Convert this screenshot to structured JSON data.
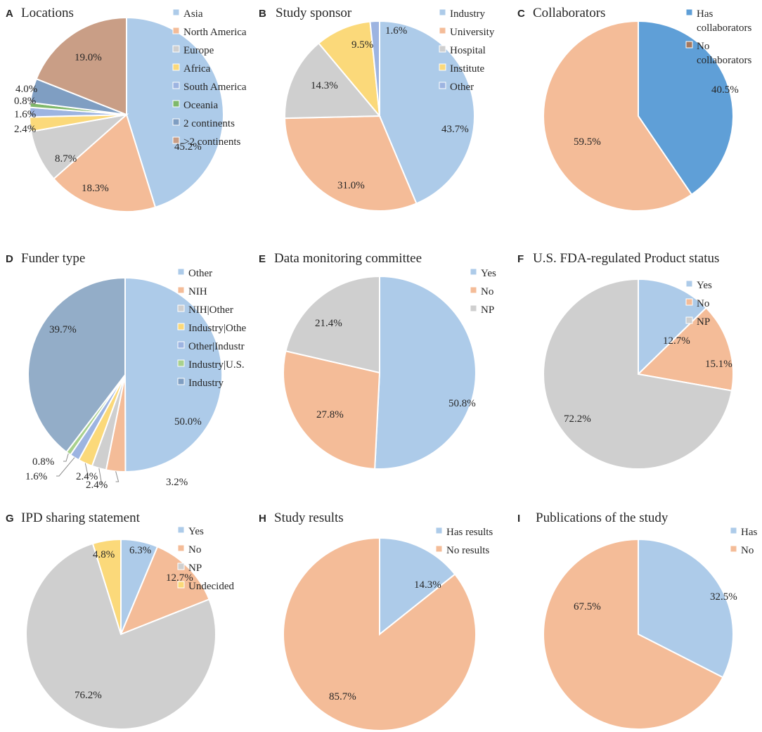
{
  "chart_data": [
    {
      "panel": "A",
      "type": "pie",
      "title": "Locations",
      "categories": [
        "Asia",
        "North America",
        "Europe",
        "Africa",
        "South America",
        "Oceania",
        "2 continents",
        ">2 continents"
      ],
      "values": [
        45.2,
        18.3,
        8.7,
        2.4,
        1.6,
        0.8,
        4.0,
        19.0
      ],
      "labels": [
        "45.2%",
        "18.3%",
        "8.7%",
        "2.4%",
        "1.6%",
        "0.8%",
        "4.0%",
        "19.0%"
      ],
      "legend_labels": [
        "Asia",
        "North America",
        "Europe",
        "Africa",
        "South America",
        "Oceania",
        "2 continents",
        ">2 continents"
      ],
      "colors": [
        "#adcbe9",
        "#f4bc98",
        "#cfcfcf",
        "#fbd97a",
        "#9db4e1",
        "#7fb86a",
        "#7f9ec2",
        "#c99e86"
      ]
    },
    {
      "panel": "B",
      "type": "pie",
      "title": "Study sponsor",
      "categories": [
        "Industry",
        "University",
        "Hospital",
        "Institute",
        "Other"
      ],
      "values": [
        43.7,
        31.0,
        14.3,
        9.5,
        1.6
      ],
      "labels": [
        "43.7%",
        "31.0%",
        "14.3%",
        "9.5%",
        "1.6%"
      ],
      "legend_labels": [
        "Industry",
        "University",
        "Hospital",
        "Institute",
        "Other"
      ],
      "colors": [
        "#adcbe9",
        "#f4bc98",
        "#cfcfcf",
        "#fbd97a",
        "#9db4e1"
      ]
    },
    {
      "panel": "C",
      "type": "pie",
      "title": "Collaborators",
      "categories": [
        "Has collaborators",
        "No collaborators"
      ],
      "values": [
        40.5,
        59.5
      ],
      "labels": [
        "40.5%",
        "59.5%"
      ],
      "legend_labels": [
        [
          "Has",
          "collaborators"
        ],
        [
          "No",
          "collaborators"
        ]
      ],
      "colors": [
        "#5f9fd7",
        "#f4bc98"
      ],
      "legend_colors": [
        "#5f9fd7",
        "#a5785f"
      ]
    },
    {
      "panel": "D",
      "type": "pie",
      "title": "Funder type",
      "categories": [
        "Other",
        "NIH",
        "NIH|Other",
        "Industry|Other",
        "Other|Industry",
        "Industry|U.S.",
        "Industry"
      ],
      "values": [
        50.0,
        3.2,
        2.4,
        2.4,
        1.6,
        0.8,
        39.7
      ],
      "labels": [
        "50.0%",
        "3.2%",
        "2.4%",
        "2.4%",
        "1.6%",
        "0.8%",
        "39.7%"
      ],
      "legend_labels": [
        "Other",
        "NIH",
        "NIH|Other",
        "Industry|Othe",
        "Other|Industr",
        "Industry|U.S.",
        "Industry"
      ],
      "colors": [
        "#adcbe9",
        "#f4bc98",
        "#cfcfcf",
        "#fbd97a",
        "#9db4e1",
        "#a9d18e",
        "#93adc8"
      ],
      "legend_colors": [
        "#adcbe9",
        "#f4bc98",
        "#cfcfcf",
        "#fbd97a",
        "#9db4e1",
        "#a9d18e",
        "#7f9ec2"
      ]
    },
    {
      "panel": "E",
      "type": "pie",
      "title": "Data monitoring committee",
      "categories": [
        "Yes",
        "No",
        "NP"
      ],
      "values": [
        50.8,
        27.8,
        21.4
      ],
      "labels": [
        "50.8%",
        "27.8%",
        "21.4%"
      ],
      "legend_labels": [
        "Yes",
        "No",
        "NP"
      ],
      "colors": [
        "#adcbe9",
        "#f4bc98",
        "#cfcfcf"
      ]
    },
    {
      "panel": "F",
      "type": "pie",
      "title": "U.S. FDA-regulated Product status",
      "categories": [
        "Yes",
        "No",
        "NP"
      ],
      "values": [
        12.7,
        15.1,
        72.2
      ],
      "labels": [
        "12.7%",
        "15.1%",
        "72.2%"
      ],
      "legend_labels": [
        "Yes",
        "No",
        "NP"
      ],
      "colors": [
        "#adcbe9",
        "#f4bc98",
        "#cfcfcf"
      ]
    },
    {
      "panel": "G",
      "type": "pie",
      "title": "IPD sharing statement",
      "categories": [
        "Yes",
        "No",
        "NP",
        "Undecided"
      ],
      "values": [
        6.3,
        12.7,
        76.2,
        4.8
      ],
      "labels": [
        "6.3%",
        "12.7%",
        "76.2%",
        "4.8%"
      ],
      "legend_labels": [
        "Yes",
        "No",
        "NP",
        "Undecided"
      ],
      "colors": [
        "#adcbe9",
        "#f4bc98",
        "#cfcfcf",
        "#fbd97a"
      ]
    },
    {
      "panel": "H",
      "type": "pie",
      "title": "Study results",
      "categories": [
        "Has results",
        "No results"
      ],
      "values": [
        14.3,
        85.7
      ],
      "labels": [
        "14.3%",
        "85.7%"
      ],
      "legend_labels": [
        "Has results",
        "No results"
      ],
      "colors": [
        "#adcbe9",
        "#f4bc98"
      ]
    },
    {
      "panel": "I",
      "type": "pie",
      "title": "Publications of the study",
      "categories": [
        "Has",
        "No"
      ],
      "values": [
        32.5,
        67.5
      ],
      "labels": [
        "32.5%",
        "67.5%"
      ],
      "legend_labels": [
        "Has",
        "No"
      ],
      "colors": [
        "#adcbe9",
        "#f4bc98"
      ]
    }
  ]
}
